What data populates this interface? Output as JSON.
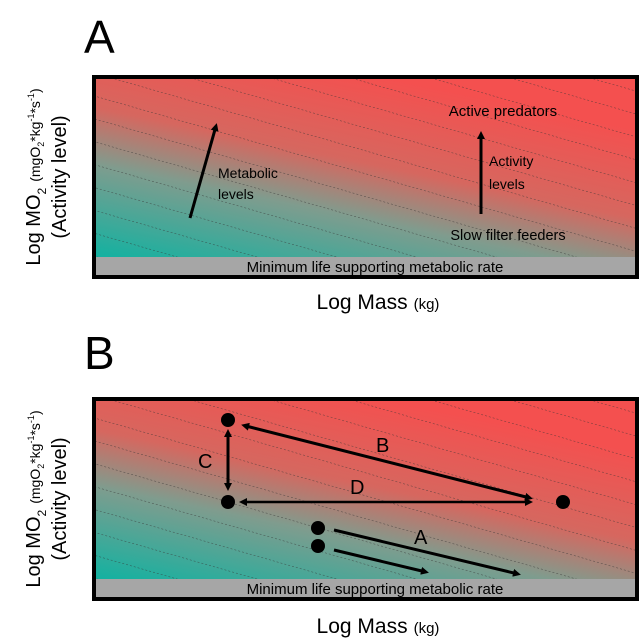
{
  "panel_a": {
    "letter": "A",
    "y_axis": {
      "main": "Log MO",
      "sub": "2",
      "units": "(mgO",
      "units_sub": "2",
      "units_rest": "*kg",
      "exp1": "-1",
      "units_mid": "*s",
      "exp2": "-1",
      "units_close": ")",
      "line2": "(Activity level)"
    },
    "x_axis": {
      "main": "Log Mass",
      "units": "(kg)"
    },
    "baseline": "Minimum life supporting metabolic rate",
    "labels": {
      "active_predators": "Active predators",
      "slow_filter_feeders": "Slow filter feeders",
      "metabolic_line1": "Metabolic",
      "metabolic_line2": "levels",
      "activity_line1": "Activity",
      "activity_line2": "levels"
    }
  },
  "panel_b": {
    "letter": "B",
    "y_axis": {
      "main": "Log MO",
      "sub": "2",
      "units": "(mgO",
      "units_sub": "2",
      "units_rest": "*kg",
      "exp1": "-1",
      "units_mid": "*s",
      "exp2": "-1",
      "units_close": ")",
      "line2": "(Activity level)"
    },
    "x_axis": {
      "main": "Log Mass",
      "units": "(kg)"
    },
    "baseline": "Minimum life supporting metabolic rate",
    "arrow_labels": {
      "a": "A",
      "b": "B",
      "c": "C",
      "d": "D"
    }
  },
  "colors": {
    "high": "#f4504f",
    "low": "#16b1a0",
    "baseline": "#a6a6a6",
    "frame": "#000000"
  }
}
